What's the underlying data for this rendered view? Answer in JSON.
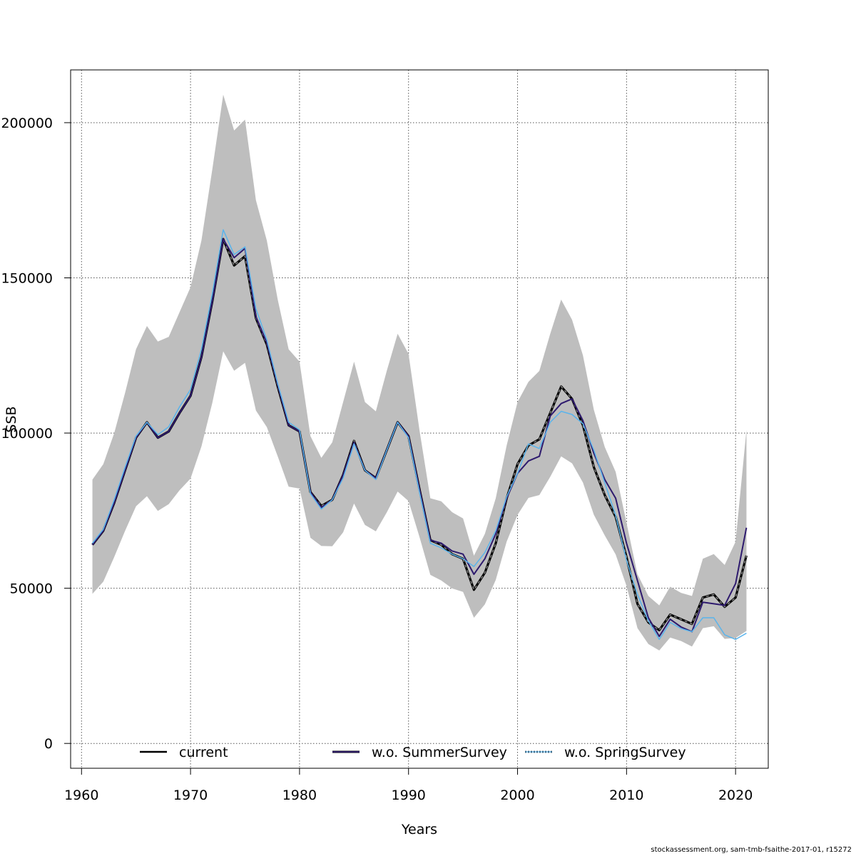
{
  "chart_data": {
    "type": "line",
    "title": "",
    "xlabel": "Years",
    "ylabel": "SSB",
    "xlim": [
      1959,
      2023
    ],
    "ylim": [
      -8000,
      217000
    ],
    "x_ticks": [
      1960,
      1970,
      1980,
      1990,
      2000,
      2010,
      2020
    ],
    "y_ticks": [
      0,
      50000,
      100000,
      150000,
      200000
    ],
    "x_tick_labels": [
      "1960",
      "1970",
      "1980",
      "1990",
      "2000",
      "2010",
      "2020"
    ],
    "y_tick_labels": [
      "0",
      "50000",
      "100000",
      "150000",
      "200000"
    ],
    "grid": true,
    "legend_position": "bottom",
    "x": [
      1961,
      1962,
      1963,
      1964,
      1965,
      1966,
      1967,
      1968,
      1969,
      1970,
      1971,
      1972,
      1973,
      1974,
      1975,
      1976,
      1977,
      1978,
      1979,
      1980,
      1981,
      1982,
      1983,
      1984,
      1985,
      1986,
      1987,
      1988,
      1989,
      1990,
      1991,
      1992,
      1993,
      1994,
      1995,
      1996,
      1997,
      1998,
      1999,
      2000,
      2001,
      2002,
      2003,
      2004,
      2005,
      2006,
      2007,
      2008,
      2009,
      2010,
      2011,
      2012,
      2013,
      2014,
      2015,
      2016,
      2017,
      2018,
      2019,
      2020,
      2021
    ],
    "band": {
      "upper": [
        85000,
        90000,
        100000,
        113000,
        127000,
        134500,
        129500,
        131000,
        139000,
        147000,
        162000,
        185000,
        209000,
        197500,
        201000,
        175000,
        162000,
        143000,
        127000,
        123000,
        99000,
        92000,
        97000,
        110000,
        123000,
        110000,
        107000,
        120000,
        132000,
        125500,
        101000,
        79000,
        78000,
        74500,
        72500,
        60500,
        67500,
        79000,
        96000,
        110000,
        116500,
        120000,
        132000,
        143000,
        136500,
        125000,
        107500,
        95500,
        87500,
        71000,
        54500,
        47500,
        44500,
        50500,
        48500,
        47500,
        59500,
        61000,
        57500,
        65000,
        101000
      ]
    },
    "series": [
      {
        "name": "current",
        "color": "#000000",
        "values": [
          64000,
          68500,
          77500,
          88000,
          98500,
          103500,
          98500,
          100500,
          106500,
          112000,
          124500,
          142500,
          162500,
          154000,
          157000,
          137000,
          128500,
          115000,
          102500,
          100500,
          81000,
          76500,
          78500,
          86500,
          97500,
          88000,
          85500,
          94500,
          103500,
          99000,
          82000,
          65500,
          64000,
          61000,
          59500,
          49500,
          55000,
          64500,
          79000,
          90000,
          96000,
          98000,
          106500,
          115000,
          111000,
          102500,
          89000,
          80000,
          73000,
          60000,
          45000,
          39000,
          36500,
          41500,
          40000,
          38500,
          47000,
          48000,
          44000,
          47000,
          60500
        ]
      },
      {
        "name": "w.o. SummerSurvey",
        "color": "#2e1a6e",
        "values": [
          64000,
          68500,
          77500,
          88000,
          98500,
          103500,
          98500,
          100500,
          106500,
          112000,
          124500,
          142500,
          162500,
          156500,
          159500,
          137500,
          129000,
          115500,
          102500,
          100500,
          81000,
          76000,
          78500,
          86500,
          97000,
          88000,
          85500,
          94500,
          103500,
          99000,
          82000,
          65500,
          64500,
          62000,
          61000,
          54500,
          59500,
          67500,
          79000,
          87000,
          91000,
          92500,
          105500,
          109500,
          111000,
          104000,
          93500,
          85000,
          79000,
          64500,
          52500,
          40500,
          34500,
          40000,
          37500,
          36000,
          45500,
          45000,
          44500,
          51500,
          69500
        ]
      },
      {
        "name": "w.o. SpringSurvey",
        "color": "#5ab4ec",
        "values": [
          64500,
          69000,
          78500,
          89000,
          99000,
          103500,
          99500,
          102000,
          108500,
          114000,
          127000,
          145000,
          165500,
          157500,
          160000,
          140000,
          130000,
          116000,
          103500,
          101000,
          80500,
          75500,
          78500,
          85500,
          96500,
          88000,
          85000,
          94500,
          103500,
          98500,
          81000,
          64500,
          63000,
          61000,
          59500,
          57000,
          61500,
          68500,
          79500,
          87000,
          96500,
          95000,
          103500,
          107000,
          106000,
          103000,
          94500,
          84000,
          73500,
          59000,
          48000,
          39500,
          33500,
          39000,
          37000,
          36000,
          40500,
          40500,
          35000,
          33500,
          35500
        ]
      }
    ]
  },
  "footer": "stockassessment.org, sam-tmb-fsaithe-2017-01, r15272"
}
